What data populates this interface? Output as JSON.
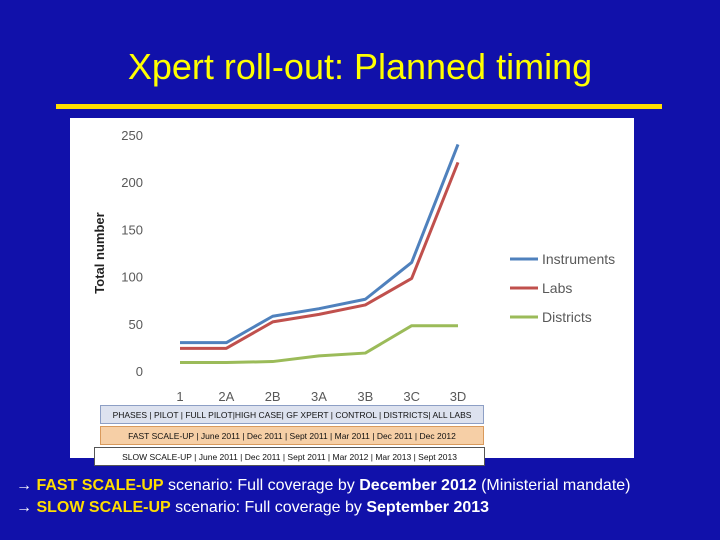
{
  "slide": {
    "title": "Xpert roll-out: Planned timing"
  },
  "chart_data": {
    "type": "line",
    "ylabel": "Total number",
    "xlabel": "",
    "categories": [
      "1",
      "2A",
      "2B",
      "3A",
      "3B",
      "3C",
      "3D"
    ],
    "ylim": [
      0,
      250
    ],
    "yticks": [
      0,
      50,
      100,
      150,
      200,
      250
    ],
    "grid": false,
    "legend_position": "right",
    "series": [
      {
        "name": "Instruments",
        "color": "#4f81bd",
        "values": [
          30,
          30,
          58,
          66,
          76,
          115,
          240
        ]
      },
      {
        "name": "Labs",
        "color": "#c0504d",
        "values": [
          24,
          24,
          52,
          60,
          70,
          98,
          221
        ]
      },
      {
        "name": "Districts",
        "color": "#9bbb59",
        "values": [
          9,
          9,
          10,
          16,
          19,
          48,
          48
        ]
      }
    ]
  },
  "phase_table": {
    "row1": "PHASES | PILOT | FULL PILOT|HIGH CASE| GF XPERT | CONTROL | DISTRICTS| ALL LABS",
    "row2": "FAST SCALE-UP | June 2011 | Dec 2011 | Sept 2011 | Mar 2011 | Dec 2011 | Dec 2012",
    "row3": "SLOW SCALE-UP | June 2011 | Dec 2011 | Sept 2011 | Mar 2012 | Mar 2013 | Sept 2013"
  },
  "scenarios": {
    "fast": {
      "arrow": "→",
      "name": "FAST SCALE-UP",
      "text1": " scenario: Full coverage by ",
      "date": "December 2012",
      "text2": " (Ministerial mandate)"
    },
    "slow": {
      "arrow": "→",
      "name": "SLOW SCALE-UP",
      "text1": " scenario: Full coverage by ",
      "date": "September 2013"
    }
  }
}
